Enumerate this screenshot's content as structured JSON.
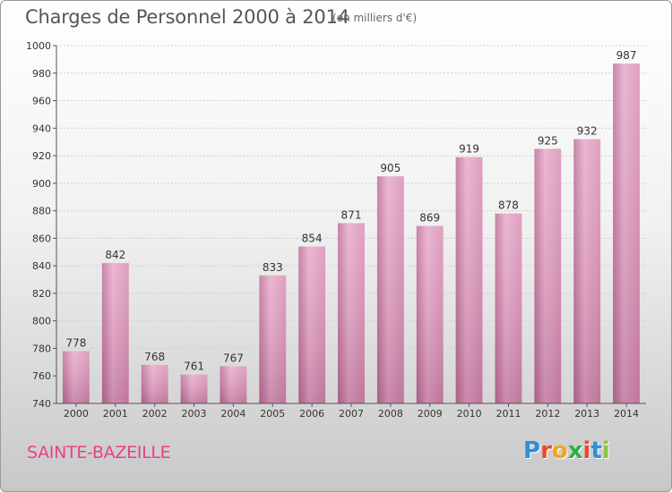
{
  "header": {
    "title": "Charges de Personnel 2000 à 2014",
    "unit_note": "(en milliers d'€)"
  },
  "footer": {
    "city": "SAINTE-BAZEILLE",
    "logo_letters": [
      "P",
      "r",
      "o",
      "x",
      "i",
      "t",
      "i"
    ],
    "logo_colors": [
      "#2f8fd6",
      "#e74a2e",
      "#f2a51f",
      "#2fae4a",
      "#e74a2e",
      "#2f8fd6",
      "#8dc63f"
    ]
  },
  "colors": {
    "bar": "#d98fb5",
    "bar_light": "#e8aacb",
    "bar_dark": "#bd6f98",
    "grid": "#cfcfcf",
    "axis": "#555555"
  },
  "chart_data": {
    "type": "bar",
    "title": "Charges de Personnel 2000 à 2014",
    "subtitle": "(en milliers d'€)",
    "categories": [
      "2000",
      "2001",
      "2002",
      "2003",
      "2004",
      "2005",
      "2006",
      "2007",
      "2008",
      "2009",
      "2010",
      "2011",
      "2012",
      "2013",
      "2014"
    ],
    "values": [
      778,
      842,
      768,
      761,
      767,
      833,
      854,
      871,
      905,
      869,
      919,
      878,
      925,
      932,
      987
    ],
    "ylim": [
      740,
      1000
    ],
    "yticks": [
      740,
      760,
      780,
      800,
      820,
      840,
      860,
      880,
      900,
      920,
      940,
      960,
      980,
      1000
    ],
    "grid": true,
    "xlabel": "",
    "ylabel": ""
  }
}
